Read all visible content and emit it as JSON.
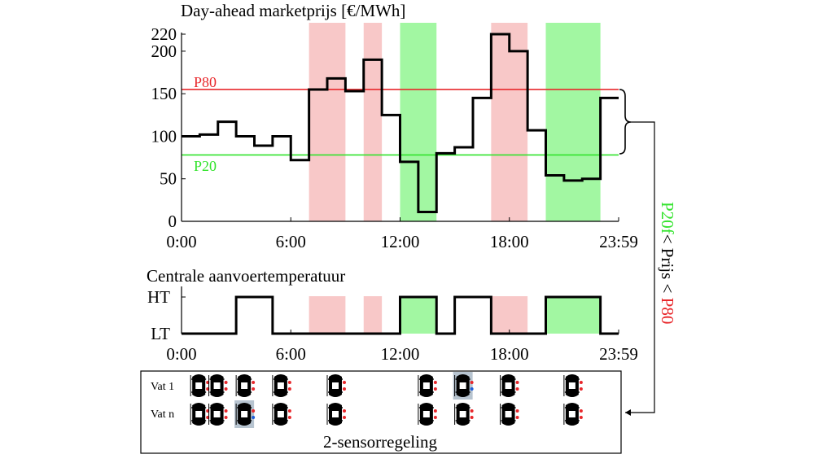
{
  "chart_data": [
    {
      "type": "line",
      "title": "Day-ahead marketprijs [€/MWh]",
      "xlabel": "",
      "ylabel": "",
      "x_ticks": [
        "0:00",
        "6:00",
        "12:00",
        "18:00",
        "23:59"
      ],
      "y_ticks": [
        "0",
        "50",
        "100",
        "150",
        "200",
        "220"
      ],
      "xlim": [
        0,
        24
      ],
      "ylim": [
        0,
        220
      ],
      "series": [
        {
          "step": "post",
          "color": "#000000",
          "x": [
            0,
            1,
            2,
            3,
            4,
            5,
            6,
            7,
            8,
            9,
            10,
            11,
            12,
            13,
            14,
            15,
            16,
            17,
            18,
            19,
            20,
            21,
            22,
            23,
            24
          ],
          "values": [
            100,
            102,
            117,
            100,
            89,
            100,
            72,
            155,
            168,
            153,
            190,
            125,
            70,
            11,
            80,
            87,
            145,
            220,
            200,
            107,
            54,
            48,
            50,
            145,
            145
          ]
        }
      ],
      "reference_lines": [
        {
          "label": "P80",
          "value": 155,
          "color": "#e8282c"
        },
        {
          "label": "P20",
          "value": 78,
          "color": "#32e32c"
        }
      ],
      "bands": [
        {
          "from": 7,
          "to": 9,
          "color": "#f8c8c8"
        },
        {
          "from": 10,
          "to": 11,
          "color": "#f8c8c8"
        },
        {
          "from": 12,
          "to": 14,
          "color": "#a2f7a2"
        },
        {
          "from": 17,
          "to": 19,
          "color": "#f8c8c8"
        },
        {
          "from": 20,
          "to": 23,
          "color": "#a2f7a2"
        }
      ],
      "side_label": {
        "green_part": "P20f",
        "black_part": "< Prijs < ",
        "red_part": "P80"
      }
    },
    {
      "type": "line",
      "title": "Centrale aanvoertemperatuur",
      "x_ticks": [
        "0:00",
        "6:00",
        "12:00",
        "18:00",
        "23:59"
      ],
      "y_ticks": [
        "LT",
        "HT"
      ],
      "xlim": [
        0,
        24
      ],
      "series": [
        {
          "step": "post",
          "color": "#000000",
          "x": [
            0,
            3,
            5,
            12,
            14,
            15,
            17,
            20,
            23,
            24
          ],
          "values": [
            0,
            1,
            0,
            1,
            0,
            1,
            0,
            1,
            0,
            0
          ]
        }
      ]
    }
  ],
  "sensor_panel": {
    "title": "2-sensorregeling",
    "rows": [
      {
        "label": "Vat 1",
        "highlight_index": 6
      },
      {
        "label": "Vat n",
        "highlight_index": 2
      }
    ],
    "tank_hours": [
      0.5,
      1.5,
      3,
      5,
      8,
      13,
      15,
      17.5,
      21
    ]
  },
  "colors": {
    "p80_red": "#e8282c",
    "p20_green": "#32e32c",
    "band_red": "#f8c8c8",
    "band_green": "#a2f7a2"
  }
}
